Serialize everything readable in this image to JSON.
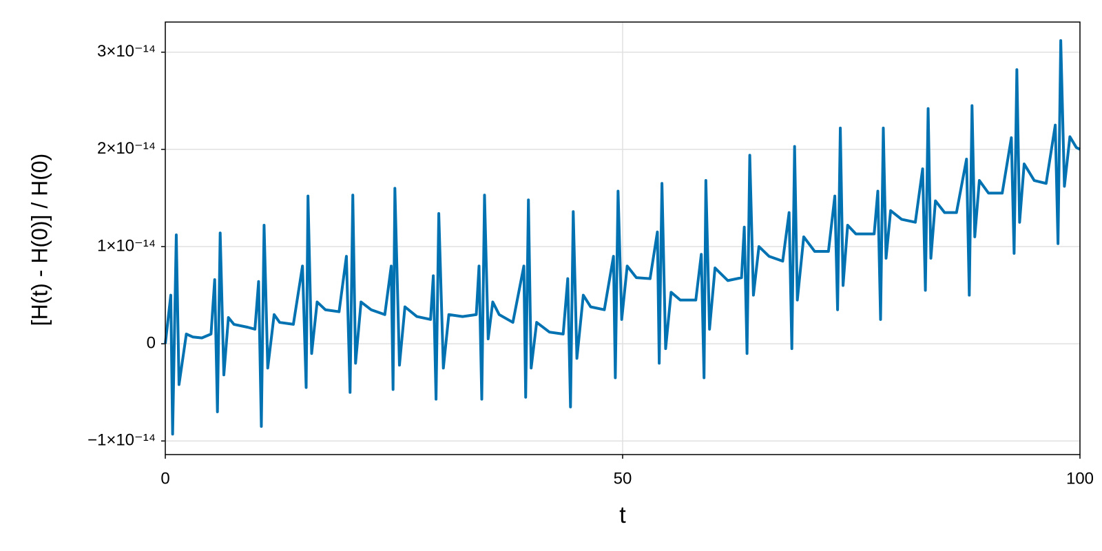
{
  "chart_data": {
    "type": "line",
    "x_label": "t",
    "y_label": "[H(t) - H(0)] / H(0)",
    "x": [
      0,
      0.6,
      0.8,
      1.2,
      1.5,
      2.3,
      3,
      4,
      5,
      5.4,
      5.7,
      6.0,
      6.4,
      6.9,
      7.5,
      9,
      9.8,
      10.2,
      10.5,
      10.8,
      11.2,
      11.9,
      12.5,
      14,
      15.0,
      15.4,
      15.6,
      16,
      16.6,
      17.5,
      19,
      19.8,
      20.2,
      20.5,
      20.8,
      21.4,
      22.5,
      24,
      24.7,
      24.9,
      25.1,
      25.6,
      26.2,
      27.5,
      29,
      29.3,
      29.6,
      29.9,
      30.4,
      31,
      32.5,
      34,
      34.3,
      34.6,
      34.9,
      35.3,
      35.8,
      36.5,
      38,
      39.2,
      39.4,
      39.7,
      40.0,
      40.6,
      42,
      43.5,
      44.0,
      44.3,
      44.6,
      45,
      45.7,
      46.5,
      48,
      49.0,
      49.2,
      49.5,
      49.9,
      50.5,
      51.5,
      53,
      53.8,
      54.0,
      54.3,
      54.7,
      55.3,
      56.3,
      58,
      58.6,
      58.9,
      59.1,
      59.5,
      60.1,
      61.5,
      63,
      63.3,
      63.6,
      63.9,
      64.3,
      64.9,
      66,
      67.5,
      68.2,
      68.5,
      68.8,
      69.1,
      69.8,
      71,
      72.5,
      73.2,
      73.5,
      73.8,
      74.1,
      74.6,
      75.5,
      77.5,
      77.9,
      78.2,
      78.5,
      78.8,
      79.3,
      80.5,
      82,
      82.8,
      83.1,
      83.4,
      83.7,
      84.2,
      85.2,
      86.5,
      87.6,
      87.9,
      88.2,
      88.5,
      89.0,
      90,
      91.5,
      92.5,
      92.8,
      93.1,
      93.4,
      93.9,
      95,
      96.3,
      97.3,
      97.6,
      97.9,
      98.3,
      98.9,
      99.6,
      100
    ],
    "series": [
      {
        "color": "#0072b2",
        "values": [
          0,
          5e-15,
          -9.3e-15,
          1.12e-14,
          -4.2e-15,
          1e-15,
          7e-16,
          6e-16,
          1e-15,
          6.6e-15,
          -7e-15,
          1.14e-14,
          -3.2e-15,
          2.7e-15,
          2e-15,
          1.7e-15,
          1.5e-15,
          6.4e-15,
          -8.5e-15,
          1.22e-14,
          -2.5e-15,
          3e-15,
          2.2e-15,
          2e-15,
          8e-15,
          -4.5e-15,
          1.52e-14,
          -1e-15,
          4.3e-15,
          3.5e-15,
          3.3e-15,
          9e-15,
          -5e-15,
          1.53e-14,
          -2e-15,
          4.3e-15,
          3.5e-15,
          3e-15,
          8e-15,
          -4.7e-15,
          1.6e-14,
          -2.2e-15,
          3.8e-15,
          2.8e-15,
          2.5e-15,
          7e-15,
          -5.7e-15,
          1.34e-14,
          -2.5e-15,
          3e-15,
          2.8e-15,
          3e-15,
          8e-15,
          -5.7e-15,
          1.53e-14,
          5e-16,
          4.3e-15,
          3e-15,
          2.2e-15,
          8e-15,
          -5.5e-15,
          1.48e-14,
          -2.5e-15,
          2.2e-15,
          1.2e-15,
          1e-15,
          6.7e-15,
          -6.5e-15,
          1.36e-14,
          -1.5e-15,
          5e-15,
          3.8e-15,
          3.5e-15,
          9e-15,
          -3.5e-15,
          1.57e-14,
          2.5e-15,
          8e-15,
          6.8e-15,
          6.7e-15,
          1.15e-14,
          -2e-15,
          1.65e-14,
          -5e-16,
          5.3e-15,
          4.5e-15,
          4.5e-15,
          9.2e-15,
          -3.5e-15,
          1.68e-14,
          1.5e-15,
          7.8e-15,
          6.5e-15,
          6.8e-15,
          1.2e-14,
          -1e-15,
          1.94e-14,
          5e-15,
          1e-14,
          9e-15,
          8.5e-15,
          1.35e-14,
          -5e-16,
          2.03e-14,
          4.5e-15,
          1.1e-14,
          9.5e-15,
          9.5e-15,
          1.52e-14,
          3.5e-15,
          2.22e-14,
          6e-15,
          1.22e-14,
          1.13e-14,
          1.13e-14,
          1.57e-14,
          2.5e-15,
          2.22e-14,
          8.8e-15,
          1.37e-14,
          1.28e-14,
          1.25e-14,
          1.8e-14,
          5.5e-15,
          2.42e-14,
          8.8e-15,
          1.47e-14,
          1.35e-14,
          1.35e-14,
          1.9e-14,
          5e-15,
          2.45e-14,
          1.1e-14,
          1.68e-14,
          1.55e-14,
          1.55e-14,
          2.12e-14,
          9.3e-15,
          2.82e-14,
          1.25e-14,
          1.85e-14,
          1.68e-14,
          1.65e-14,
          2.25e-14,
          1.03e-14,
          3.12e-14,
          1.62e-14,
          2.13e-14,
          2.02e-14,
          2e-14
        ]
      }
    ],
    "xlim": [
      0,
      100
    ],
    "xticks": [
      0,
      50,
      100
    ],
    "ylim": [
      -1.14e-14,
      3.31e-14
    ],
    "yticks": [
      {
        "value": -1e-14,
        "label": "−1×10⁻¹⁴"
      },
      0,
      {
        "value": 1e-14,
        "label": "1×10⁻¹⁴"
      },
      {
        "value": 2e-14,
        "label": "2×10⁻¹⁴"
      },
      {
        "value": 3e-14,
        "label": "3×10⁻¹⁴"
      }
    ],
    "grid": true
  }
}
